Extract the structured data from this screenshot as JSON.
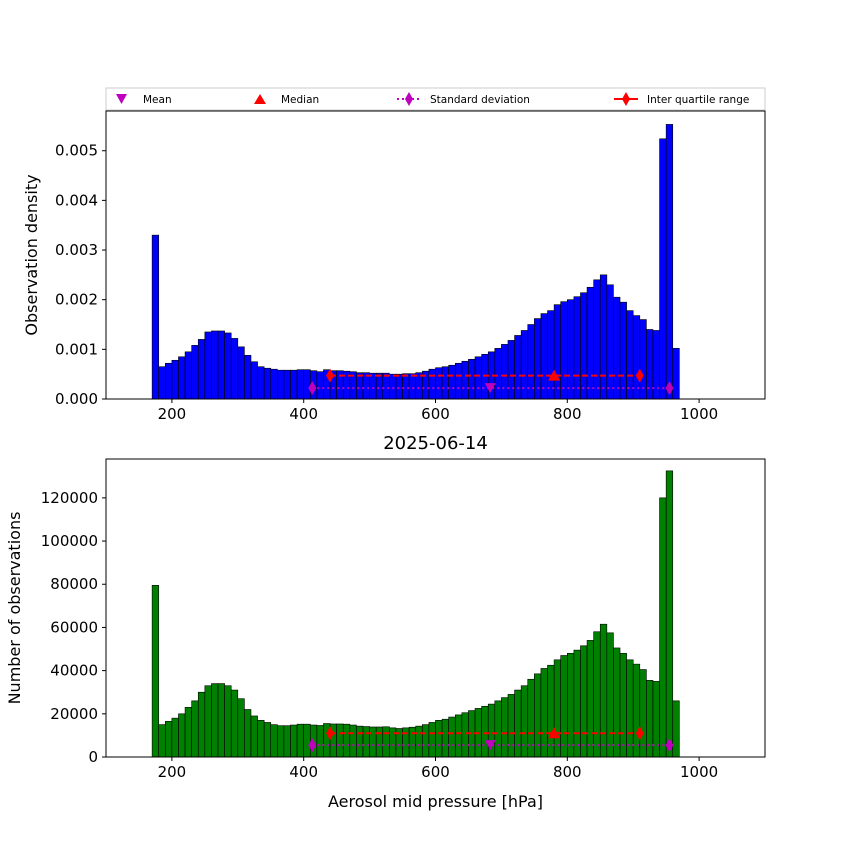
{
  "chart_data": [
    {
      "type": "bar",
      "title": "",
      "xlabel": "",
      "ylabel": "Observation density",
      "xlim": [
        100,
        1100
      ],
      "ylim": [
        0,
        0.0058
      ],
      "xticks": [
        200,
        400,
        600,
        800,
        1000
      ],
      "yticks": [
        "0.000",
        "0.001",
        "0.002",
        "0.003",
        "0.004",
        "0.005"
      ],
      "bar_color": "#0000ff",
      "bin_start": 170,
      "bin_width": 10,
      "values": [
        0.0033,
        0.00065,
        0.00072,
        0.00078,
        0.00085,
        0.00095,
        0.00108,
        0.0012,
        0.00135,
        0.00137,
        0.00137,
        0.00133,
        0.00122,
        0.00105,
        0.00088,
        0.00075,
        0.00065,
        0.00062,
        0.0006,
        0.00058,
        0.00058,
        0.00058,
        0.00059,
        0.00059,
        0.00057,
        0.00055,
        0.00059,
        0.00057,
        0.00057,
        0.00056,
        0.00055,
        0.00053,
        0.00053,
        0.00052,
        0.00052,
        0.00052,
        0.0005,
        0.0005,
        0.00051,
        0.00051,
        0.00053,
        0.00056,
        0.0006,
        0.00063,
        0.00065,
        0.00068,
        0.00072,
        0.00076,
        0.0008,
        0.00085,
        0.0009,
        0.00095,
        0.00102,
        0.0011,
        0.00118,
        0.00128,
        0.00138,
        0.0015,
        0.00162,
        0.00172,
        0.00178,
        0.0019,
        0.00196,
        0.002,
        0.00206,
        0.00214,
        0.00225,
        0.0024,
        0.0025,
        0.0023,
        0.00205,
        0.00195,
        0.00178,
        0.00168,
        0.0016,
        0.0014,
        0.00138,
        0.00524,
        0.00553,
        0.00102
      ],
      "stats": {
        "mean": 683,
        "median": 780,
        "std_range": [
          413,
          955
        ],
        "iqr_range": [
          440,
          910
        ],
        "stat_y": 0.00022,
        "iqr_y": 0.00047
      },
      "legend": {
        "placement": "top, above plot",
        "items": [
          {
            "label": "Mean",
            "color": "#bf00bf",
            "marker": "triangle-down"
          },
          {
            "label": "Median",
            "color": "#ff0000",
            "marker": "triangle-up"
          },
          {
            "label": "Standard deviation",
            "color": "#bf00bf",
            "marker": "diamond-dotted"
          },
          {
            "label": "Inter quartile range",
            "color": "#ff0000",
            "marker": "diamond-solid"
          }
        ]
      }
    },
    {
      "type": "bar",
      "title": "2025-06-14",
      "xlabel": "Aerosol mid pressure [hPa]",
      "ylabel": "Number of observations",
      "xlim": [
        100,
        1100
      ],
      "ylim": [
        0,
        138000
      ],
      "xticks": [
        200,
        400,
        600,
        800,
        1000
      ],
      "yticks": [
        "0",
        "20000",
        "40000",
        "60000",
        "80000",
        "100000",
        "120000"
      ],
      "bar_color": "#008000",
      "bin_start": 170,
      "bin_width": 10,
      "values": [
        79500,
        15000,
        16500,
        18000,
        20000,
        23000,
        26000,
        30000,
        33000,
        34000,
        34000,
        33000,
        31000,
        27000,
        22000,
        19000,
        17000,
        16000,
        15000,
        14500,
        14500,
        14800,
        15200,
        15200,
        14800,
        14600,
        15500,
        15300,
        15300,
        15200,
        14800,
        14300,
        14100,
        13900,
        13900,
        14000,
        13500,
        13200,
        13500,
        13800,
        14300,
        15000,
        16000,
        17000,
        17500,
        18500,
        19500,
        20500,
        21500,
        22500,
        23500,
        24500,
        26000,
        27500,
        29000,
        31000,
        33000,
        36000,
        38500,
        41000,
        42500,
        45000,
        47000,
        48000,
        49500,
        51500,
        54000,
        58000,
        61500,
        57500,
        50500,
        48000,
        45000,
        43000,
        40500,
        35500,
        35000,
        120000,
        132500,
        26000
      ],
      "stats": {
        "mean": 683,
        "median": 780,
        "std_range": [
          413,
          955
        ],
        "iqr_range": [
          440,
          910
        ],
        "stat_y": 5500,
        "iqr_y": 11000
      }
    }
  ]
}
